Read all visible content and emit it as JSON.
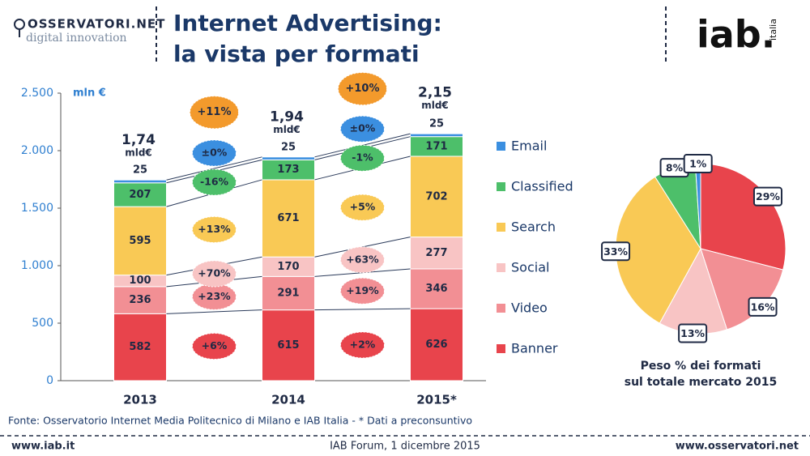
{
  "header": {
    "logo_name": "OSSERVATORI.NET",
    "logo_sub": "digital innovation",
    "title_lines": [
      "Internet Advertising:",
      "la vista per formati"
    ],
    "iab_logo": "iab.",
    "iab_sub": "italia"
  },
  "source": "Fonte: Osservatorio Internet Media Politecnico di Milano e IAB Italia - * Dati a preconsuntivo",
  "footer": {
    "left": "www.iab.it",
    "center": "IAB Forum, 1 dicembre 2015",
    "right": "www.osservatori.net"
  },
  "chart_data": [
    {
      "type": "bar",
      "stacked": true,
      "y_label": "mln €",
      "categories": [
        "2013",
        "2014",
        "2015*"
      ],
      "ylim": [
        0,
        2500
      ],
      "yticks": [
        0,
        500,
        {
          "value": 1000,
          "label": "1.000"
        },
        {
          "value": 1500,
          "label": "1.500"
        },
        {
          "value": 2000,
          "label": "2.000"
        },
        {
          "value": 2500,
          "label": "2.500"
        }
      ],
      "series": [
        {
          "name": "Banner",
          "color": "#e8444c",
          "values": [
            582,
            615,
            626
          ]
        },
        {
          "name": "Video",
          "color": "#f28f94",
          "values": [
            236,
            291,
            346
          ]
        },
        {
          "name": "Social",
          "color": "#f8c4c4",
          "values": [
            100,
            170,
            277
          ]
        },
        {
          "name": "Search",
          "color": "#f9c955",
          "values": [
            595,
            671,
            702
          ]
        },
        {
          "name": "Classified",
          "color": "#4dbf6a",
          "values": [
            207,
            173,
            171
          ]
        },
        {
          "name": "Email",
          "color": "#3b8fe0",
          "values": [
            25,
            25,
            25
          ]
        }
      ],
      "totals": {
        "values": [
          1740,
          1940,
          2150
        ],
        "value_labels": [
          "1,74",
          "1,94",
          "2,15"
        ],
        "unit": "mld€"
      },
      "growth": [
        {
          "total": "+11%",
          "series": [
            "+6%",
            "+23%",
            "+70%",
            "+13%",
            "-16%",
            "±0%"
          ]
        },
        {
          "total": "+10%",
          "series": [
            "+2%",
            "+19%",
            "+63%",
            "+5%",
            "-1%",
            "±0%"
          ]
        }
      ],
      "total_color": "#f39a2c"
    },
    {
      "type": "pie",
      "caption": [
        "Peso % dei formati",
        "sul totale mercato 2015"
      ],
      "categories": [
        "Banner",
        "Video",
        "Social",
        "Search",
        "Classified",
        "Email"
      ],
      "colors": [
        "#e8444c",
        "#f28f94",
        "#f8c4c4",
        "#f9c955",
        "#4dbf6a",
        "#3b8fe0"
      ],
      "values": [
        29,
        16,
        13,
        33,
        8,
        1
      ],
      "value_labels": [
        "29%",
        "16%",
        "13%",
        "33%",
        "8%",
        "1%"
      ]
    }
  ]
}
